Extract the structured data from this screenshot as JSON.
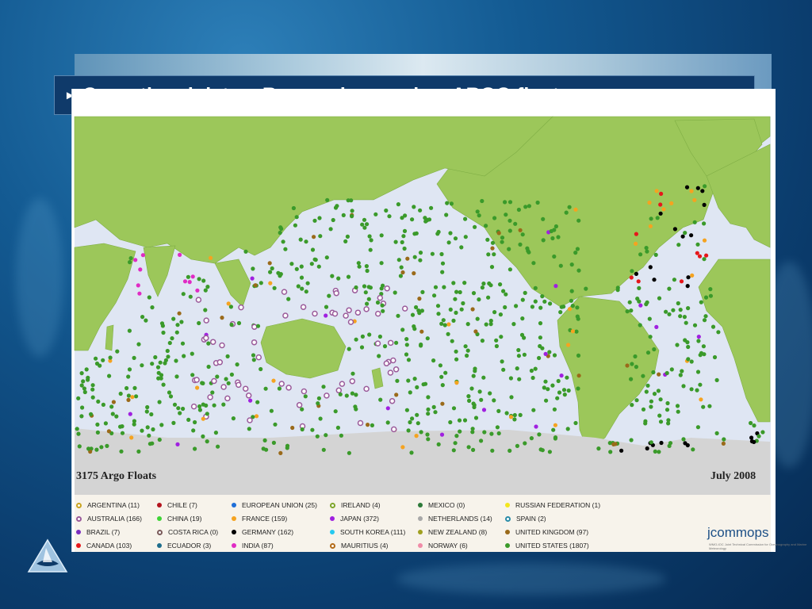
{
  "slide": {
    "title": "Operational data – Research vessels –  ARGO floats",
    "bullet": "►"
  },
  "map": {
    "float_count_label": "3175 Argo Floats",
    "date_label": "July 2008",
    "colors": {
      "ocean": "#dfe6f3",
      "land": "#9cc75a",
      "ice": "#d4d4d4",
      "legend_bg": "#f7f3eb"
    }
  },
  "legend": [
    {
      "label": "ARGENTINA (11)",
      "color": "#c9a420",
      "ring": true
    },
    {
      "label": "AUSTRALIA (166)",
      "color": "#9a5a9a",
      "ring": true
    },
    {
      "label": "BRAZIL (7)",
      "color": "#7a2ec0",
      "ring": false
    },
    {
      "label": "CANADA (103)",
      "color": "#e6171b",
      "ring": false
    },
    {
      "label": "CHILE (7)",
      "color": "#b4141e",
      "ring": false
    },
    {
      "label": "CHINA (19)",
      "color": "#3fd436",
      "ring": false
    },
    {
      "label": "COSTA RICA (0)",
      "color": "#7a5a5a",
      "ring": true
    },
    {
      "label": "ECUADOR (3)",
      "color": "#1d6d8c",
      "ring": false
    },
    {
      "label": "EUROPEAN UNION (25)",
      "color": "#1f6fd8",
      "ring": false
    },
    {
      "label": "FRANCE (159)",
      "color": "#f5a320",
      "ring": false
    },
    {
      "label": "GERMANY (162)",
      "color": "#000000",
      "ring": false
    },
    {
      "label": "INDIA (87)",
      "color": "#e02bc4",
      "ring": false
    },
    {
      "label": "IRELAND (4)",
      "color": "#7ea52a",
      "ring": true
    },
    {
      "label": "JAPAN (372)",
      "color": "#a020e0",
      "ring": false
    },
    {
      "label": "SOUTH KOREA (111)",
      "color": "#26c9f0",
      "ring": false
    },
    {
      "label": "MAURITIUS (4)",
      "color": "#b36a16",
      "ring": true
    },
    {
      "label": "MEXICO (0)",
      "color": "#2d7a3a",
      "ring": false
    },
    {
      "label": "NETHERLANDS (14)",
      "color": "#a8a8a8",
      "ring": false
    },
    {
      "label": "NEW ZEALAND (8)",
      "color": "#a0a020",
      "ring": false
    },
    {
      "label": "NORWAY (6)",
      "color": "#f08ca8",
      "ring": false
    },
    {
      "label": "RUSSIAN FEDERATION (1)",
      "color": "#f3e61c",
      "ring": false
    },
    {
      "label": "SPAIN (2)",
      "color": "#2a8ca8",
      "ring": true
    },
    {
      "label": "UNITED KINGDOM (97)",
      "color": "#9a6a1a",
      "ring": false
    },
    {
      "label": "UNITED STATES (1807)",
      "color": "#3a9a2a",
      "ring": false
    }
  ],
  "branding": {
    "jcommops_logo": "jcommops",
    "jcommops_sub": "WMO-IOC Joint Technical Commission for Oceanography and Marine Meteorology",
    "corner_logo_icon": "fish-sail-logo"
  }
}
